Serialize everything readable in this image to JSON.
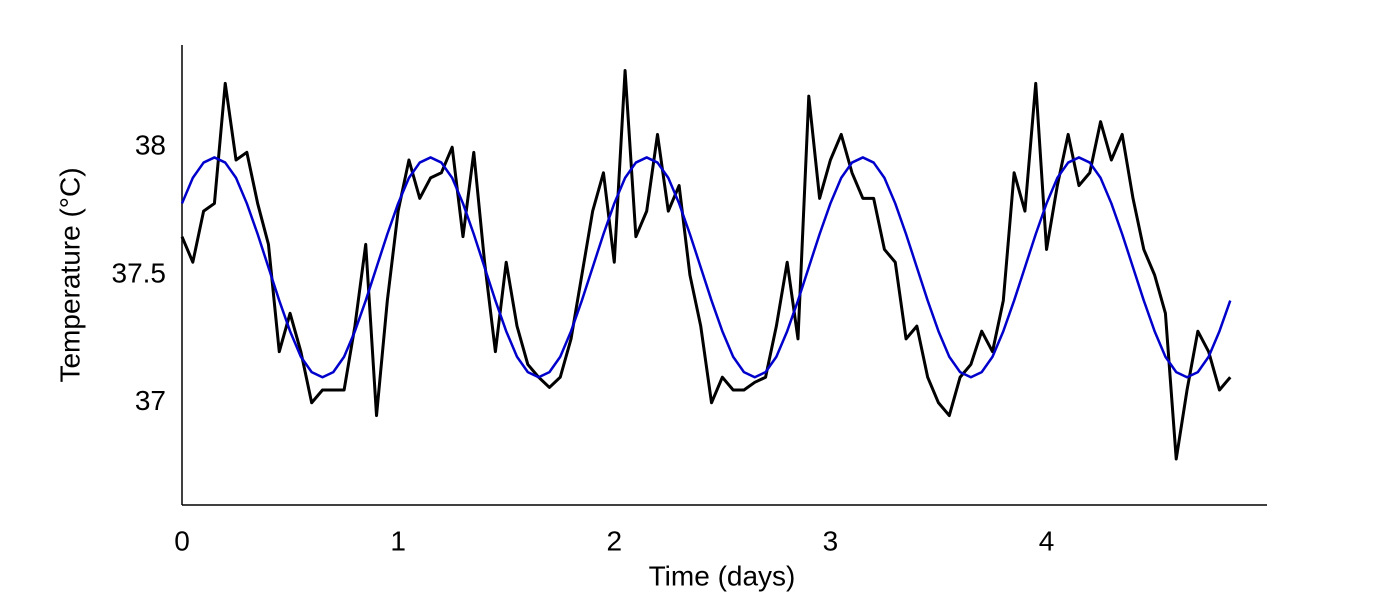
{
  "chart_data": {
    "type": "line",
    "xlabel": "Time (days)",
    "ylabel": "Temperature (°C)",
    "x": [
      0,
      0.05,
      0.1,
      0.15,
      0.2,
      0.25,
      0.3,
      0.35,
      0.4,
      0.45,
      0.5,
      0.55,
      0.6,
      0.65,
      0.7,
      0.75,
      0.8,
      0.85,
      0.9,
      0.95,
      1,
      1.05,
      1.1,
      1.15,
      1.2,
      1.25,
      1.3,
      1.35,
      1.4,
      1.45,
      1.5,
      1.55,
      1.6,
      1.65,
      1.7,
      1.75,
      1.8,
      1.85,
      1.9,
      1.95,
      2,
      2.05,
      2.1,
      2.15,
      2.2,
      2.25,
      2.3,
      2.35,
      2.4,
      2.45,
      2.5,
      2.55,
      2.6,
      2.65,
      2.7,
      2.75,
      2.8,
      2.85,
      2.9,
      2.95,
      3,
      3.05,
      3.1,
      3.15,
      3.2,
      3.25,
      3.3,
      3.35,
      3.4,
      3.45,
      3.5,
      3.55,
      3.6,
      3.65,
      3.7,
      3.75,
      3.8,
      3.85,
      3.9,
      3.95,
      4,
      4.05,
      4.1,
      4.15,
      4.2,
      4.25,
      4.3,
      4.35,
      4.4,
      4.45,
      4.5,
      4.55,
      4.6,
      4.65,
      4.7,
      4.75,
      4.8,
      4.85
    ],
    "series": [
      {
        "color": "#000000",
        "values": [
          37.65,
          37.55,
          37.75,
          37.78,
          38.25,
          37.95,
          37.98,
          37.78,
          37.62,
          37.2,
          37.35,
          37.2,
          37.0,
          37.05,
          37.05,
          37.05,
          37.3,
          37.62,
          36.95,
          37.4,
          37.75,
          37.95,
          37.8,
          37.88,
          37.9,
          38.0,
          37.65,
          37.98,
          37.55,
          37.2,
          37.55,
          37.3,
          37.15,
          37.1,
          37.06,
          37.1,
          37.25,
          37.5,
          37.75,
          37.9,
          37.55,
          38.3,
          37.65,
          37.75,
          38.05,
          37.75,
          37.85,
          37.5,
          37.3,
          37.0,
          37.1,
          37.05,
          37.05,
          37.08,
          37.1,
          37.3,
          37.55,
          37.25,
          38.2,
          37.8,
          37.95,
          38.05,
          37.9,
          37.8,
          37.8,
          37.6,
          37.55,
          37.25,
          37.3,
          37.1,
          37.0,
          36.95,
          37.1,
          37.15,
          37.28,
          37.2,
          37.4,
          37.9,
          37.75,
          38.25,
          37.6,
          37.85,
          38.05,
          37.85,
          37.9,
          38.1,
          37.95,
          38.05,
          37.8,
          37.6,
          37.5,
          37.35,
          36.78,
          37.05,
          37.28,
          37.2,
          37.05,
          37.1
        ]
      },
      {
        "color": "#0000cc",
        "values": [
          37.78,
          37.88,
          37.94,
          37.96,
          37.94,
          37.88,
          37.78,
          37.66,
          37.53,
          37.4,
          37.28,
          37.18,
          37.12,
          37.1,
          37.12,
          37.18,
          37.28,
          37.4,
          37.53,
          37.66,
          37.78,
          37.88,
          37.94,
          37.96,
          37.94,
          37.88,
          37.78,
          37.66,
          37.53,
          37.4,
          37.28,
          37.18,
          37.12,
          37.1,
          37.12,
          37.18,
          37.28,
          37.4,
          37.53,
          37.66,
          37.78,
          37.88,
          37.94,
          37.96,
          37.94,
          37.88,
          37.78,
          37.66,
          37.53,
          37.4,
          37.28,
          37.18,
          37.12,
          37.1,
          37.12,
          37.18,
          37.28,
          37.4,
          37.53,
          37.66,
          37.78,
          37.88,
          37.94,
          37.96,
          37.94,
          37.88,
          37.78,
          37.66,
          37.53,
          37.4,
          37.28,
          37.18,
          37.12,
          37.1,
          37.12,
          37.18,
          37.28,
          37.4,
          37.53,
          37.66,
          37.78,
          37.88,
          37.94,
          37.96,
          37.94,
          37.88,
          37.78,
          37.66,
          37.53,
          37.4,
          37.28,
          37.18,
          37.12,
          37.1,
          37.12,
          37.18,
          37.28,
          37.4
        ]
      }
    ],
    "xlim": [
      0,
      5.02
    ],
    "xticks": [
      0,
      1,
      2,
      3,
      4
    ],
    "ylim": [
      36.6,
      38.4
    ],
    "yticks": [
      37,
      37.5,
      38
    ],
    "grid": false
  }
}
